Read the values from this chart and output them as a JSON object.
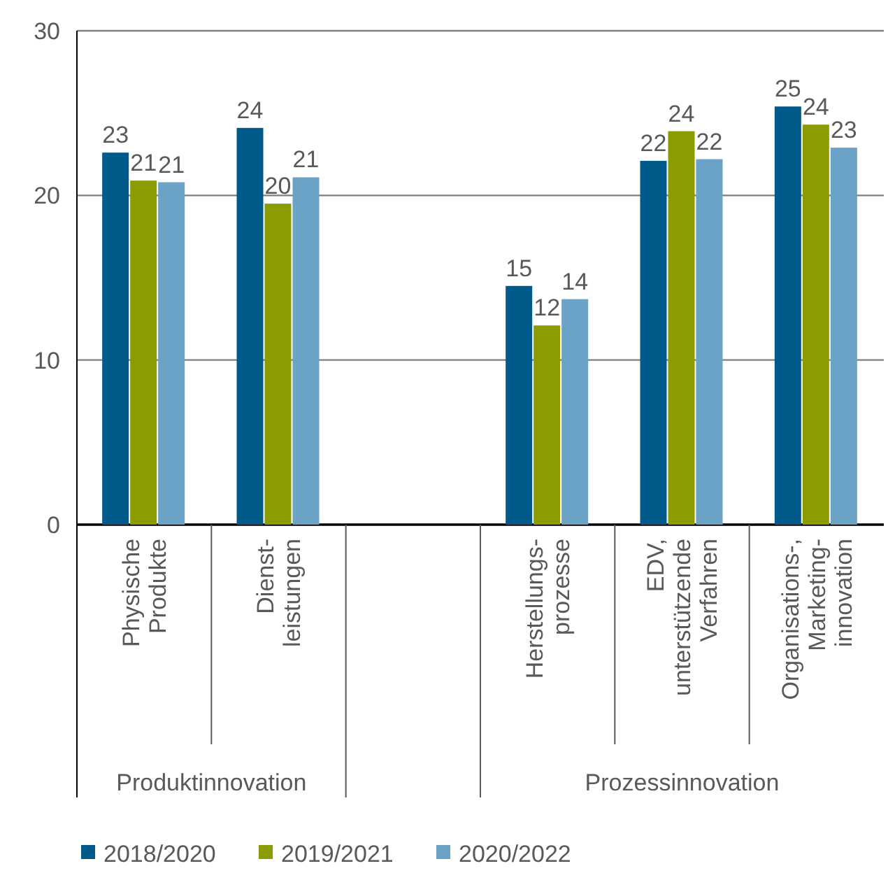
{
  "chart_data": {
    "type": "bar",
    "categories": [
      "Physische\nProdukte",
      "Dienst-\nleistungen",
      null,
      "Herstellungs-\nprozesse",
      "EDV,\nunterstützende\nVerfahren",
      "Organisations-,\nMarketing-\ninnovation"
    ],
    "series": [
      {
        "name": "2018/2020",
        "color": "#005a8a",
        "values": [
          22.6,
          24.1,
          null,
          14.5,
          22.1,
          25.4
        ],
        "value_labels": [
          "23",
          "24",
          null,
          "15",
          "22",
          "25"
        ]
      },
      {
        "name": "2019/2021",
        "color": "#8a9c00",
        "values": [
          20.9,
          19.5,
          null,
          12.1,
          23.9,
          24.3
        ],
        "value_labels": [
          "21",
          "20",
          null,
          "12",
          "24",
          "24"
        ]
      },
      {
        "name": "2020/2022",
        "color": "#6aa3c6",
        "values": [
          20.8,
          21.1,
          null,
          13.7,
          22.2,
          22.9
        ],
        "value_labels": [
          "21",
          "21",
          null,
          "14",
          "22",
          "23"
        ]
      }
    ],
    "annotations": [
      "Produktinnovation",
      "Prozessinnovation"
    ],
    "ylim": [
      0,
      30
    ],
    "yticks": [
      0,
      10,
      20,
      30
    ],
    "grid": "y",
    "legend": "bottom left"
  }
}
